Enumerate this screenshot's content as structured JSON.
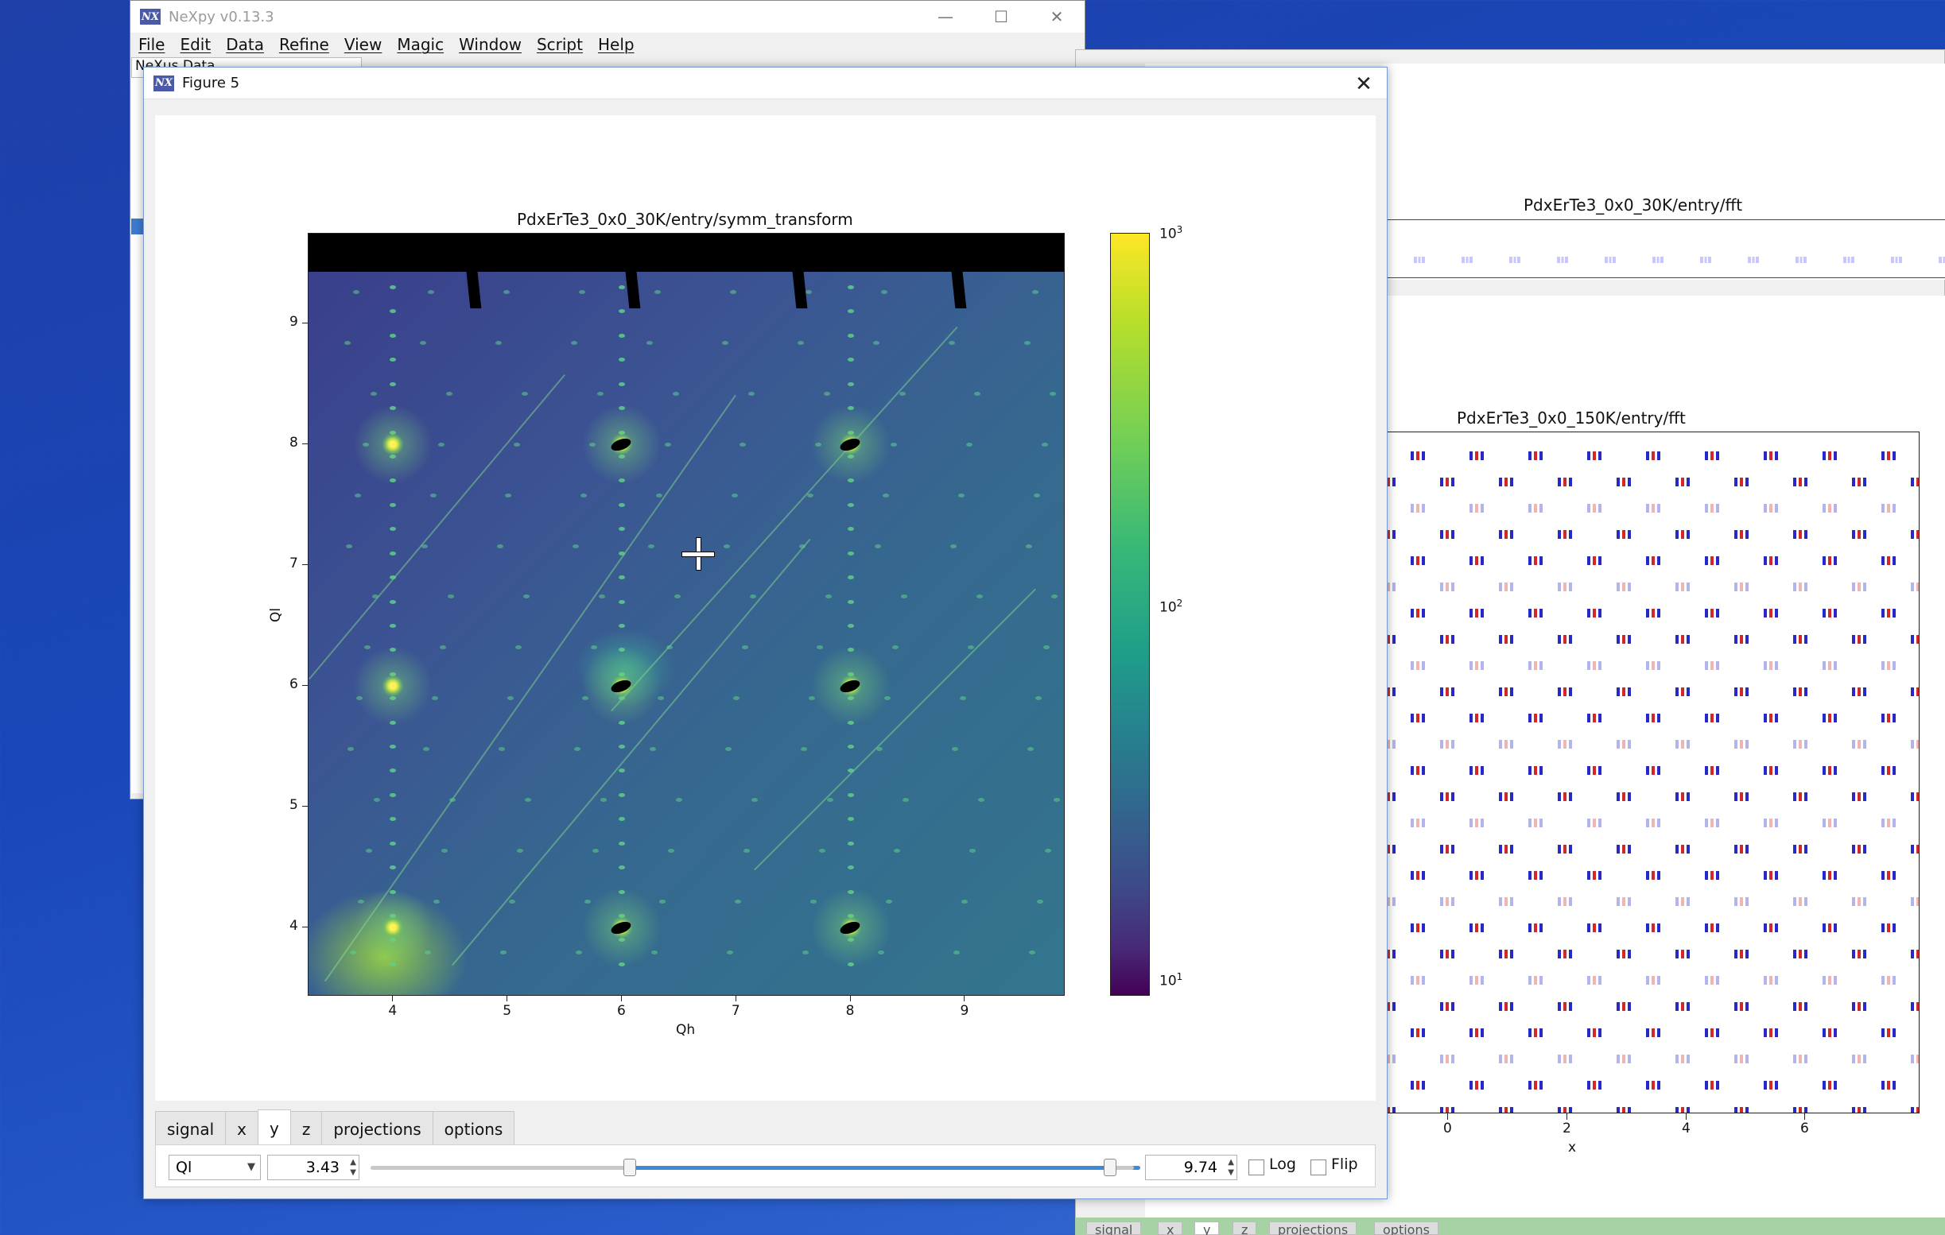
{
  "main_window": {
    "title": "NeXpy v0.13.3",
    "menu": [
      "File",
      "Edit",
      "Data",
      "Refine",
      "View",
      "Magic",
      "Window",
      "Script",
      "Help"
    ],
    "tree_header": "NeXus Data",
    "controls": {
      "minimize": "—",
      "maximize": "☐",
      "close": "✕"
    }
  },
  "figure": {
    "window_title": "Figure 5",
    "plot_title": "PdxErTe3_0x0_30K/entry/symm_transform",
    "xlabel": "Qh",
    "ylabel": "Ql",
    "xticks": [
      "4",
      "5",
      "6",
      "7",
      "8",
      "9"
    ],
    "yticks": [
      "9",
      "8",
      "7",
      "6",
      "5",
      "4"
    ],
    "colorbar": {
      "labels": [
        "10",
        "10",
        "10"
      ],
      "exps": [
        "3",
        "2",
        "1"
      ]
    },
    "close": "✕"
  },
  "tabs": [
    "signal",
    "x",
    "y",
    "z",
    "projections",
    "options"
  ],
  "active_tab": "y",
  "controls": {
    "axis_select": "Ql",
    "min_value": "3.43",
    "max_value": "9.74",
    "log_label": "Log",
    "flip_label": "Flip",
    "log_checked": false,
    "flip_checked": false
  },
  "background": {
    "fft_title_top": "PdxErTe3_0x0_30K/entry/fft",
    "fft_title_main": "PdxErTe3_0x0_150K/entry/fft",
    "xticks": [
      "0",
      "2",
      "4",
      "6"
    ],
    "xlabel": "x",
    "tabs": [
      "signal",
      "x",
      "y",
      "z",
      "projections",
      "options"
    ]
  }
}
